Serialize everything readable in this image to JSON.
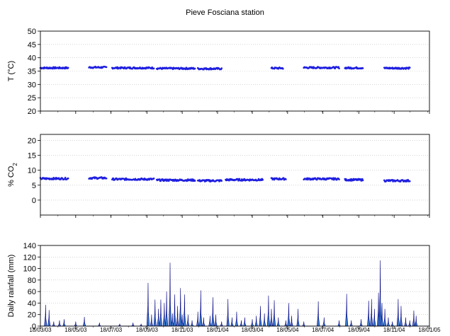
{
  "title": "Pieve Fosciana station",
  "colors": {
    "temp_points": "#1f1fe0",
    "co2_points": "#1f1fe0",
    "rain_fill": "#3c78c8",
    "rain_stroke": "#000080",
    "grid": "#bbbbbb"
  },
  "chart_data": [
    {
      "type": "scatter",
      "ylabel": "T (°C)",
      "ylim": [
        20,
        50
      ],
      "yticks": [
        20,
        25,
        30,
        35,
        40,
        45,
        50
      ],
      "segments": [
        {
          "x": [
            "18/03/03",
            "05/05/03"
          ],
          "y": 36.2
        },
        {
          "x": [
            "10/06/03",
            "10/07/03"
          ],
          "y": 36.4
        },
        {
          "x": [
            "20/07/03",
            "30/09/03"
          ],
          "y": 36.2
        },
        {
          "x": [
            "05/10/03",
            "10/12/03"
          ],
          "y": 36.0
        },
        {
          "x": [
            "15/12/03",
            "25/01/04"
          ],
          "y": 35.9
        },
        {
          "x": [
            "20/04/04",
            "10/05/04"
          ],
          "y": 36.1
        },
        {
          "x": [
            "15/06/04",
            "15/08/04"
          ],
          "y": 36.3
        },
        {
          "x": [
            "25/08/04",
            "25/09/04"
          ],
          "y": 36.2
        },
        {
          "x": [
            "01/11/04",
            "15/12/04"
          ],
          "y": 36.1
        }
      ]
    },
    {
      "type": "scatter",
      "ylabel": "% CO2",
      "ylim": [
        -5,
        22
      ],
      "yticks": [
        0,
        5,
        10,
        15,
        20
      ],
      "segments": [
        {
          "x": [
            "18/03/03",
            "05/05/03"
          ],
          "y": 7.2
        },
        {
          "x": [
            "10/06/03",
            "10/07/03"
          ],
          "y": 7.4
        },
        {
          "x": [
            "20/07/03",
            "30/09/03"
          ],
          "y": 7.0
        },
        {
          "x": [
            "05/10/03",
            "10/12/03"
          ],
          "y": 6.7
        },
        {
          "x": [
            "15/12/03",
            "25/01/04"
          ],
          "y": 6.5
        },
        {
          "x": [
            "01/02/04",
            "05/04/04"
          ],
          "y": 6.8
        },
        {
          "x": [
            "20/04/04",
            "15/05/04"
          ],
          "y": 7.1
        },
        {
          "x": [
            "15/06/04",
            "15/08/04"
          ],
          "y": 7.1
        },
        {
          "x": [
            "25/08/04",
            "25/09/04"
          ],
          "y": 6.8
        },
        {
          "x": [
            "01/11/04",
            "15/12/04"
          ],
          "y": 6.5
        }
      ]
    },
    {
      "type": "area",
      "ylabel": "Daily rainfall (mm)",
      "ylim": [
        0,
        140
      ],
      "yticks": [
        0,
        20,
        40,
        60,
        80,
        100,
        120,
        140
      ],
      "xticks": [
        "18/03/03",
        "18/05/03",
        "18/07/03",
        "18/09/03",
        "18/11/03",
        "18/01/04",
        "18/03/04",
        "18/05/04",
        "18/07/04",
        "18/09/04",
        "18/11/04",
        "18/01/05"
      ],
      "xlim": [
        "18/03/03",
        "18/01/05"
      ],
      "events": [
        {
          "x": "27/03/03",
          "y": 37
        },
        {
          "x": "02/04/03",
          "y": 28
        },
        {
          "x": "10/04/03",
          "y": 8
        },
        {
          "x": "20/04/03",
          "y": 10
        },
        {
          "x": "28/04/03",
          "y": 12
        },
        {
          "x": "18/05/03",
          "y": 8
        },
        {
          "x": "02/06/03",
          "y": 16
        },
        {
          "x": "28/06/03",
          "y": 6
        },
        {
          "x": "02/08/03",
          "y": 4
        },
        {
          "x": "25/08/03",
          "y": 6
        },
        {
          "x": "08/09/03",
          "y": 4
        },
        {
          "x": "20/09/03",
          "y": 75
        },
        {
          "x": "26/09/03",
          "y": 20
        },
        {
          "x": "02/10/03",
          "y": 46
        },
        {
          "x": "08/10/03",
          "y": 30
        },
        {
          "x": "12/10/03",
          "y": 46
        },
        {
          "x": "18/10/03",
          "y": 40
        },
        {
          "x": "22/10/03",
          "y": 60
        },
        {
          "x": "28/10/03",
          "y": 110
        },
        {
          "x": "01/11/03",
          "y": 22
        },
        {
          "x": "05/11/03",
          "y": 55
        },
        {
          "x": "10/11/03",
          "y": 35
        },
        {
          "x": "15/11/03",
          "y": 66
        },
        {
          "x": "18/11/03",
          "y": 20
        },
        {
          "x": "22/11/03",
          "y": 55
        },
        {
          "x": "28/11/03",
          "y": 20
        },
        {
          "x": "05/12/03",
          "y": 10
        },
        {
          "x": "15/12/03",
          "y": 25
        },
        {
          "x": "20/12/03",
          "y": 62
        },
        {
          "x": "25/12/03",
          "y": 15
        },
        {
          "x": "05/01/04",
          "y": 18
        },
        {
          "x": "10/01/04",
          "y": 50
        },
        {
          "x": "15/01/04",
          "y": 20
        },
        {
          "x": "25/01/04",
          "y": 8
        },
        {
          "x": "05/02/04",
          "y": 47
        },
        {
          "x": "12/02/04",
          "y": 15
        },
        {
          "x": "20/02/04",
          "y": 25
        },
        {
          "x": "28/02/04",
          "y": 10
        },
        {
          "x": "05/03/04",
          "y": 15
        },
        {
          "x": "18/03/04",
          "y": 12
        },
        {
          "x": "25/03/04",
          "y": 18
        },
        {
          "x": "01/04/04",
          "y": 35
        },
        {
          "x": "08/04/04",
          "y": 22
        },
        {
          "x": "15/04/04",
          "y": 53
        },
        {
          "x": "20/04/04",
          "y": 30
        },
        {
          "x": "25/04/04",
          "y": 45
        },
        {
          "x": "02/05/04",
          "y": 15
        },
        {
          "x": "15/05/04",
          "y": 10
        },
        {
          "x": "20/05/04",
          "y": 40
        },
        {
          "x": "25/05/04",
          "y": 18
        },
        {
          "x": "05/06/04",
          "y": 30
        },
        {
          "x": "15/06/04",
          "y": 8
        },
        {
          "x": "10/07/04",
          "y": 43
        },
        {
          "x": "20/07/04",
          "y": 15
        },
        {
          "x": "15/08/04",
          "y": 10
        },
        {
          "x": "28/08/04",
          "y": 56
        },
        {
          "x": "05/09/04",
          "y": 10
        },
        {
          "x": "22/09/04",
          "y": 12
        },
        {
          "x": "05/10/04",
          "y": 44
        },
        {
          "x": "10/10/04",
          "y": 47
        },
        {
          "x": "15/10/04",
          "y": 30
        },
        {
          "x": "22/10/04",
          "y": 58
        },
        {
          "x": "25/10/04",
          "y": 114
        },
        {
          "x": "28/10/04",
          "y": 40
        },
        {
          "x": "02/11/04",
          "y": 30
        },
        {
          "x": "08/11/04",
          "y": 15
        },
        {
          "x": "15/11/04",
          "y": 8
        },
        {
          "x": "25/11/04",
          "y": 47
        },
        {
          "x": "30/11/04",
          "y": 35
        },
        {
          "x": "08/12/04",
          "y": 15
        },
        {
          "x": "15/12/04",
          "y": 10
        },
        {
          "x": "22/12/04",
          "y": 27
        },
        {
          "x": "26/12/04",
          "y": 18
        }
      ]
    }
  ]
}
